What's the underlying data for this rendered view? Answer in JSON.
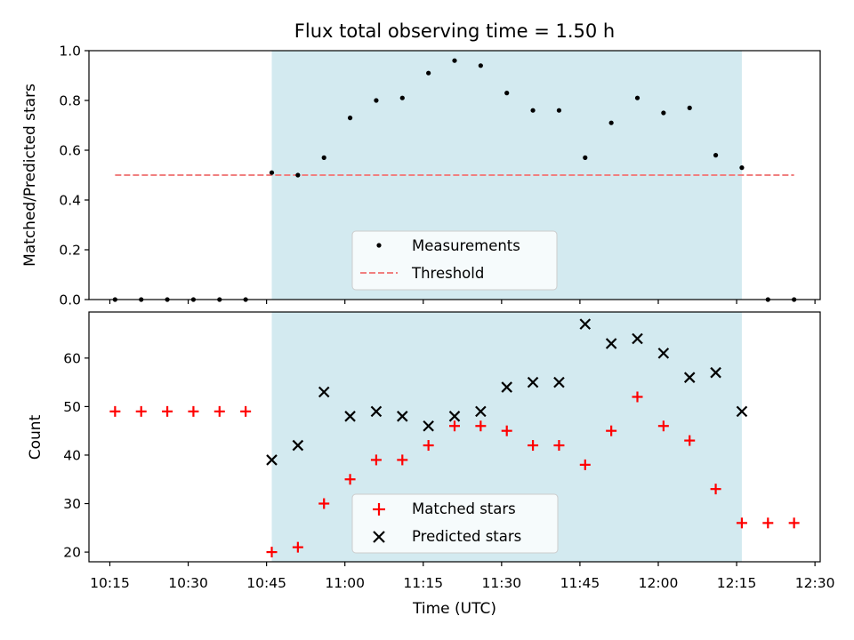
{
  "chart_data": [
    {
      "type": "scatter",
      "title": "Flux total observing time = 1.50 h",
      "xlabel": "",
      "ylabel": "Matched/Predicted stars",
      "ylim": [
        0,
        1.0
      ],
      "yticks": [
        0.0,
        0.2,
        0.4,
        0.6,
        0.8,
        1.0
      ],
      "ytick_labels": [
        "0.0",
        "0.2",
        "0.4",
        "0.6",
        "0.8",
        "1.0"
      ],
      "grid": false,
      "legend_position": "lower-center",
      "shaded_interval": [
        "10:46",
        "12:16"
      ],
      "shade_color": "#d3eaf0",
      "series": [
        {
          "name": "Measurements",
          "marker": "dot",
          "color": "#000000",
          "x": [
            "10:16",
            "10:21",
            "10:26",
            "10:31",
            "10:36",
            "10:41",
            "10:46",
            "10:51",
            "10:56",
            "11:01",
            "11:06",
            "11:11",
            "11:16",
            "11:21",
            "11:26",
            "11:31",
            "11:36",
            "11:41",
            "11:46",
            "11:51",
            "11:56",
            "12:01",
            "12:06",
            "12:11",
            "12:16",
            "12:21",
            "12:26"
          ],
          "y": [
            0,
            0,
            0,
            0,
            0,
            0,
            0.51,
            0.5,
            0.57,
            0.73,
            0.8,
            0.81,
            0.91,
            0.96,
            0.94,
            0.83,
            0.76,
            0.76,
            0.57,
            0.71,
            0.81,
            0.75,
            0.77,
            0.58,
            0.53,
            0,
            0
          ]
        },
        {
          "name": "Threshold",
          "marker": "dashed-line",
          "color": "#f08080",
          "x": [
            "10:16",
            "12:26"
          ],
          "y": [
            0.5,
            0.5
          ]
        }
      ]
    },
    {
      "type": "scatter",
      "title": "",
      "xlabel": "Time (UTC)",
      "ylabel": "Count",
      "ylim": [
        18,
        69.5
      ],
      "yticks": [
        20,
        30,
        40,
        50,
        60
      ],
      "ytick_labels": [
        "20",
        "30",
        "40",
        "50",
        "60"
      ],
      "xlim": [
        "10:11",
        "12:31"
      ],
      "xticks": [
        "10:15",
        "10:30",
        "10:45",
        "11:00",
        "11:15",
        "11:30",
        "11:45",
        "12:00",
        "12:15",
        "12:30"
      ],
      "grid": false,
      "legend_position": "lower-center",
      "shaded_interval": [
        "10:46",
        "12:16"
      ],
      "shade_color": "#d3eaf0",
      "series": [
        {
          "name": "Matched stars",
          "marker": "plus",
          "color": "#ff0000",
          "x": [
            "10:16",
            "10:21",
            "10:26",
            "10:31",
            "10:36",
            "10:41",
            "10:46",
            "10:51",
            "10:56",
            "11:01",
            "11:06",
            "11:11",
            "11:16",
            "11:21",
            "11:26",
            "11:31",
            "11:36",
            "11:41",
            "11:46",
            "11:51",
            "11:56",
            "12:01",
            "12:06",
            "12:11",
            "12:16",
            "12:21",
            "12:26"
          ],
          "y": [
            49,
            49,
            49,
            49,
            49,
            49,
            20,
            21,
            30,
            35,
            39,
            39,
            42,
            46,
            46,
            45,
            42,
            42,
            38,
            45,
            52,
            46,
            43,
            33,
            26,
            26,
            26
          ]
        },
        {
          "name": "Predicted stars",
          "marker": "x",
          "color": "#000000",
          "x": [
            "10:46",
            "10:51",
            "10:56",
            "11:01",
            "11:06",
            "11:11",
            "11:16",
            "11:21",
            "11:26",
            "11:31",
            "11:36",
            "11:41",
            "11:46",
            "11:51",
            "11:56",
            "12:01",
            "12:06",
            "12:11",
            "12:16"
          ],
          "y": [
            39,
            42,
            53,
            48,
            49,
            48,
            46,
            48,
            49,
            54,
            55,
            55,
            67,
            63,
            64,
            61,
            56,
            57,
            49
          ]
        }
      ]
    }
  ]
}
